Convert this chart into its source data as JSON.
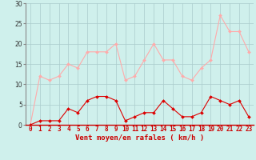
{
  "x": [
    0,
    1,
    2,
    3,
    4,
    5,
    6,
    7,
    8,
    9,
    10,
    11,
    12,
    13,
    14,
    15,
    16,
    17,
    18,
    19,
    20,
    21,
    22,
    23
  ],
  "rafales": [
    0,
    12,
    11,
    12,
    15,
    14,
    18,
    18,
    18,
    20,
    11,
    12,
    16,
    20,
    16,
    16,
    12,
    11,
    14,
    16,
    27,
    23,
    23,
    18
  ],
  "moyen": [
    0,
    1,
    1,
    1,
    4,
    3,
    6,
    7,
    7,
    6,
    1,
    2,
    3,
    3,
    6,
    4,
    2,
    2,
    3,
    7,
    6,
    5,
    6,
    2
  ],
  "bg_color": "#cff0ec",
  "grid_color": "#aacccc",
  "line_color_rafales": "#ffaaaa",
  "line_color_moyen": "#dd0000",
  "marker_color_rafales": "#ffaaaa",
  "marker_color_moyen": "#dd0000",
  "xlabel": "Vent moyen/en rafales ( km/h )",
  "ylim": [
    0,
    30
  ],
  "yticks": [
    0,
    5,
    10,
    15,
    20,
    25,
    30
  ],
  "tick_fontsize": 5.5,
  "xlabel_fontsize": 6.5
}
